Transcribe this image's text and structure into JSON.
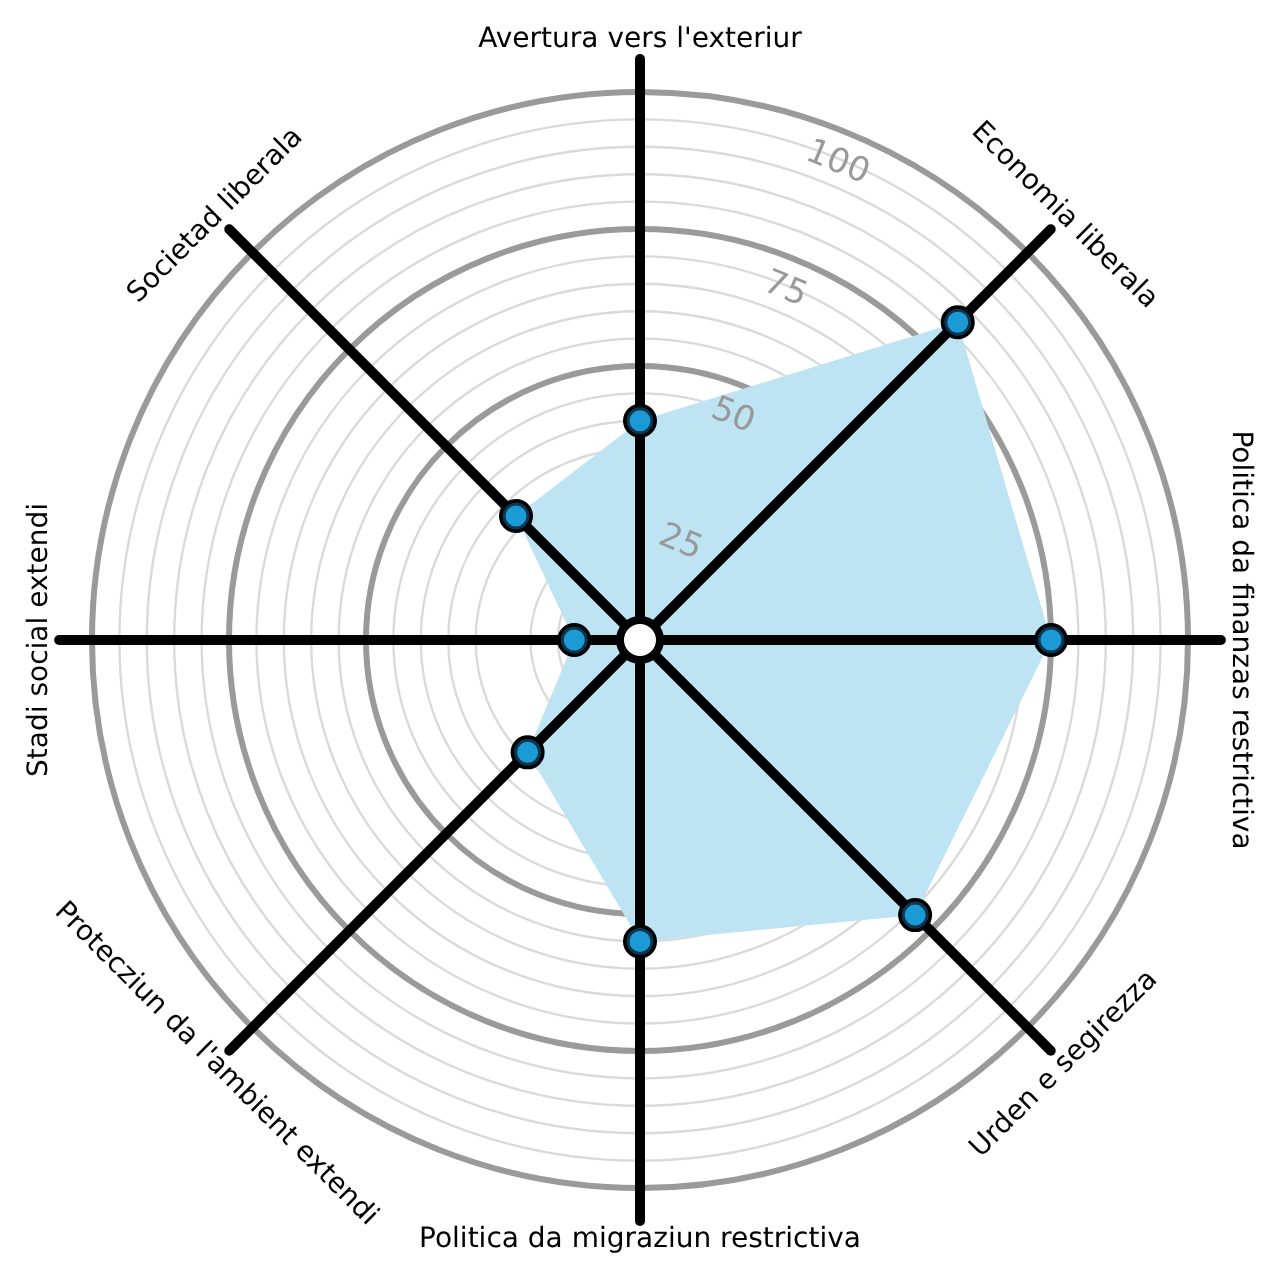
{
  "chart_data": {
    "type": "radar",
    "categories": [
      "Avertura vers l'exteriur",
      "Economia liberala",
      "Politica da finanzas restrictiva",
      "Urden e segirezza",
      "Politica da migraziun restrictiva",
      "Protecziun da l'ambient extendi",
      "Stadi social extendi",
      "Societad liberala"
    ],
    "series": [
      {
        "color": "#bee4f4",
        "values": [
          40,
          82,
          75,
          71,
          55,
          29,
          12,
          32
        ]
      }
    ],
    "ylim": [
      0,
      100
    ],
    "yticks": [
      25,
      50,
      75,
      100
    ],
    "grid": true,
    "marker": "circle",
    "legend": false
  }
}
